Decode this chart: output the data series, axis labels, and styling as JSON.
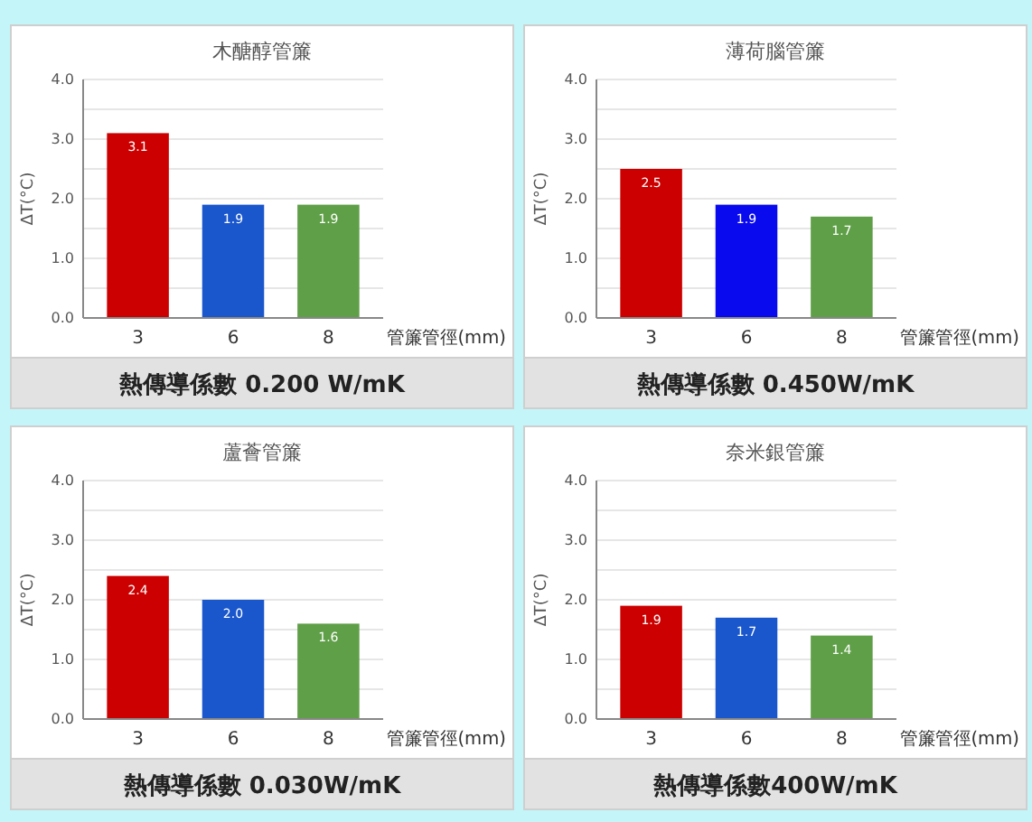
{
  "chart_data": [
    {
      "type": "bar",
      "title": "木醣醇管簾",
      "xlabel": "管簾管徑(mm)",
      "ylabel": "ΔT(°C)",
      "categories": [
        "3",
        "6",
        "8"
      ],
      "values": [
        3.1,
        1.9,
        1.9
      ],
      "colors": [
        "#cc0000",
        "#1a56cc",
        "#5f9f48"
      ],
      "ylim": [
        0,
        4
      ],
      "yticks": [
        {
          "value": 0,
          "label": "0.0"
        },
        {
          "value": 0.5,
          "label": null
        },
        {
          "value": 1,
          "label": "1.0"
        },
        {
          "value": 1.5,
          "label": null
        },
        {
          "value": 2,
          "label": "2.0"
        },
        {
          "value": 2.5,
          "label": null
        },
        {
          "value": 3,
          "label": "3.0"
        },
        {
          "value": 3.5,
          "label": null
        },
        {
          "value": 4,
          "label": "4.0"
        }
      ],
      "grid": "y",
      "data_labels": true,
      "annotations": [
        "熱傳導係數 0.200 W/mK"
      ]
    },
    {
      "type": "bar",
      "title": "薄荷腦管簾",
      "xlabel": "管簾管徑(mm)",
      "ylabel": "ΔT(°C)",
      "categories": [
        "3",
        "6",
        "8"
      ],
      "values": [
        2.5,
        1.9,
        1.7
      ],
      "colors": [
        "#cc0000",
        "#0a0aee",
        "#5f9f48"
      ],
      "ylim": [
        0,
        4
      ],
      "yticks": [
        {
          "value": 0,
          "label": "0.0"
        },
        {
          "value": 0.5,
          "label": null
        },
        {
          "value": 1,
          "label": "1.0"
        },
        {
          "value": 1.5,
          "label": null
        },
        {
          "value": 2,
          "label": "2.0"
        },
        {
          "value": 2.5,
          "label": null
        },
        {
          "value": 3,
          "label": "3.0"
        },
        {
          "value": 3.5,
          "label": null
        },
        {
          "value": 4,
          "label": "4.0"
        }
      ],
      "grid": "y",
      "data_labels": true,
      "annotations": [
        "熱傳導係數 0.450W/mK"
      ]
    },
    {
      "type": "bar",
      "title": "蘆薈管簾",
      "xlabel": "管簾管徑(mm)",
      "ylabel": "ΔT(°C)",
      "categories": [
        "3",
        "6",
        "8"
      ],
      "values": [
        2.4,
        2.0,
        1.6
      ],
      "value_labels": [
        "2.4",
        "2.0",
        "1.6"
      ],
      "colors": [
        "#cc0000",
        "#1a56cc",
        "#5f9f48"
      ],
      "ylim": [
        0,
        4
      ],
      "yticks": [
        {
          "value": 0,
          "label": "0.0"
        },
        {
          "value": 0.5,
          "label": null
        },
        {
          "value": 1,
          "label": "1.0"
        },
        {
          "value": 1.5,
          "label": null
        },
        {
          "value": 2,
          "label": "2.0"
        },
        {
          "value": 2.5,
          "label": null
        },
        {
          "value": 3,
          "label": "3.0"
        },
        {
          "value": 3.5,
          "label": null
        },
        {
          "value": 4,
          "label": "4.0"
        }
      ],
      "grid": "y",
      "annotations": [
        "熱傳導係數 0.030W/mK"
      ]
    },
    {
      "type": "bar",
      "title": "奈米銀管簾",
      "xlabel": "管簾管徑(mm)",
      "ylabel": "ΔT(°C)",
      "categories": [
        "3",
        "6",
        "8"
      ],
      "values": [
        1.9,
        1.7,
        1.4
      ],
      "colors": [
        "#cc0000",
        "#1a56cc",
        "#5f9f48"
      ],
      "ylim": [
        0,
        4
      ],
      "yticks": [
        {
          "value": 0,
          "label": "0.0"
        },
        {
          "value": 0.5,
          "label": null
        },
        {
          "value": 1,
          "label": "1.0"
        },
        {
          "value": 1.5,
          "label": null
        },
        {
          "value": 2,
          "label": "2.0"
        },
        {
          "value": 2.5,
          "label": null
        },
        {
          "value": 3,
          "label": "3.0"
        },
        {
          "value": 3.5,
          "label": null
        },
        {
          "value": 4,
          "label": "4.0"
        }
      ],
      "grid": "y",
      "data_labels": true,
      "annotations": [
        "熱傳導係數400W/mK"
      ]
    }
  ]
}
